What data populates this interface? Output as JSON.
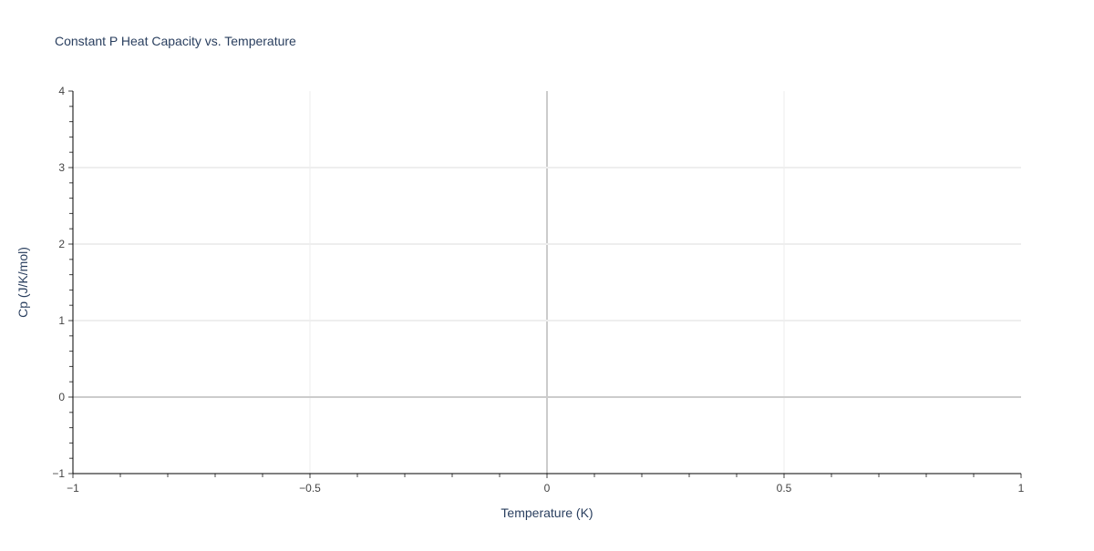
{
  "chart_data": {
    "type": "line",
    "title": "Constant P Heat Capacity vs. Temperature",
    "xlabel": "Temperature (K)",
    "ylabel": "Cp (J/K/mol)",
    "xlim": [
      -1,
      1
    ],
    "ylim": [
      -1,
      4
    ],
    "x_ticks": [
      -1,
      -0.5,
      0,
      0.5,
      1
    ],
    "x_tick_labels": [
      "−1",
      "−0.5",
      "0",
      "0.5",
      "1"
    ],
    "y_ticks": [
      -1,
      0,
      1,
      2,
      3,
      4
    ],
    "y_tick_labels": [
      "−1",
      "0",
      "1",
      "2",
      "3",
      "4"
    ],
    "grid": true,
    "series": []
  },
  "colors": {
    "text": "#444444",
    "title": "#2a3f5f",
    "grid": "#eeeeee",
    "zeroline": "#cccccc",
    "axis": "#000000"
  }
}
